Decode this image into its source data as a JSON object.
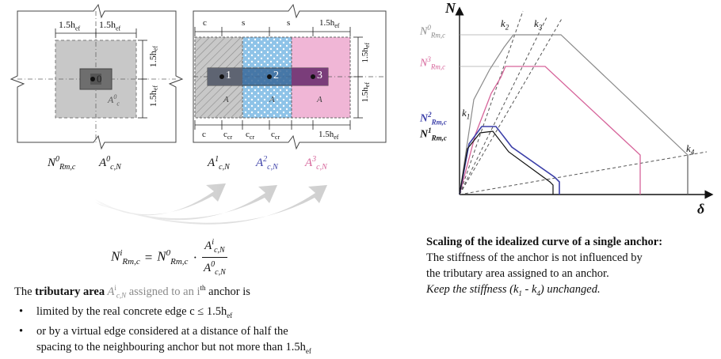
{
  "colors": {
    "black": "#111111",
    "blue": "#3b3fa8",
    "pink": "#d6649a",
    "gray_text": "#8a8a8a",
    "area_gray": "#c8c8c8",
    "area_blue": "#8ec3e8",
    "area_pink": "#f0b6d6"
  },
  "left_plate": {
    "dim_top": [
      "1.5h",
      "1.5h"
    ],
    "dim_right": [
      "1.5h",
      "1.5h"
    ],
    "dim_sub": "ef",
    "anchor_label": "0",
    "area_label": "A",
    "area_sup": "0",
    "area_sub": "c",
    "caption_n": "N",
    "caption_n_sup": "0",
    "caption_n_sub": "Rm,c",
    "caption_a": "A",
    "caption_a_sup": "0",
    "caption_a_sub": "c,N"
  },
  "mid_plate": {
    "dim_top": [
      "c",
      "s",
      "s",
      "1.5h"
    ],
    "dim_bottom": [
      "c",
      "c",
      "c",
      "c",
      "1.5h"
    ],
    "dim_bottom_sub": [
      "",
      "cr",
      "cr",
      "cr",
      "ef"
    ],
    "dim_right": [
      "1.5h",
      "1.5h"
    ],
    "anchors": [
      "1",
      "2",
      "3"
    ],
    "area_labels": [
      "A",
      "A",
      "A"
    ],
    "captions": [
      {
        "base": "A",
        "sup": "1",
        "sub": "c,N",
        "color": "#111111"
      },
      {
        "base": "A",
        "sup": "2",
        "sub": "c,N",
        "color": "#3b3fa8"
      },
      {
        "base": "A",
        "sup": "3",
        "sub": "c,N",
        "color": "#d6649a"
      }
    ]
  },
  "formula": {
    "lhs": "N",
    "lhs_sup": "i",
    "lhs_sub": "Rm,c",
    "eq": "=",
    "rhs": "N",
    "rhs_sup": "0",
    "rhs_sub": "Rm,c",
    "dot": "·",
    "num": "A",
    "num_sup": "i",
    "num_sub": "c,N",
    "den": "A",
    "den_sup": "0",
    "den_sub": "c,N"
  },
  "left_text": {
    "intro_1": "The ",
    "intro_bold": "tributary area",
    "intro_2": " A",
    "intro_sup": "i",
    "intro_sub": "c,N",
    "intro_3": " assigned to an i",
    "intro_th": "th",
    "intro_4": " anchor is",
    "bullet_1": "limited by the real concrete edge c ≤ 1.5h",
    "bullet_1_sub": "ef",
    "bullet_2_a": "or by a virtual edge considered at a distance of half the",
    "bullet_2_b": "spacing to the neighbouring anchor but not more than 1.5h",
    "bullet_2_sub": "ef"
  },
  "chart": {
    "y_axis": "N",
    "x_axis": "δ",
    "y_labels": [
      {
        "base": "N",
        "sup": "0",
        "sub": "Rm,c",
        "color": "#8a8a8a"
      },
      {
        "base": "N",
        "sup": "3",
        "sub": "Rm,c",
        "color": "#d6649a"
      },
      {
        "base": "N",
        "sup": "2",
        "sub": "Rm,c",
        "color": "#3b3fa8"
      },
      {
        "base": "N",
        "sup": "1",
        "sub": "Rm,c",
        "color": "#111111"
      }
    ],
    "k_labels": [
      "k",
      "k",
      "k",
      "k"
    ],
    "k_subs": [
      "1",
      "2",
      "3",
      "4"
    ]
  },
  "right_text": {
    "title": "Scaling of the idealized curve of a single anchor:",
    "line_1": "The stiffness of the anchor is not influenced by",
    "line_2": "the tributary area assigned to an anchor.",
    "line_3_a": "Keep the stiffness (k",
    "line_3_sub1": "1",
    "line_3_b": " - k",
    "line_3_sub2": "4",
    "line_3_c": ") unchanged."
  }
}
